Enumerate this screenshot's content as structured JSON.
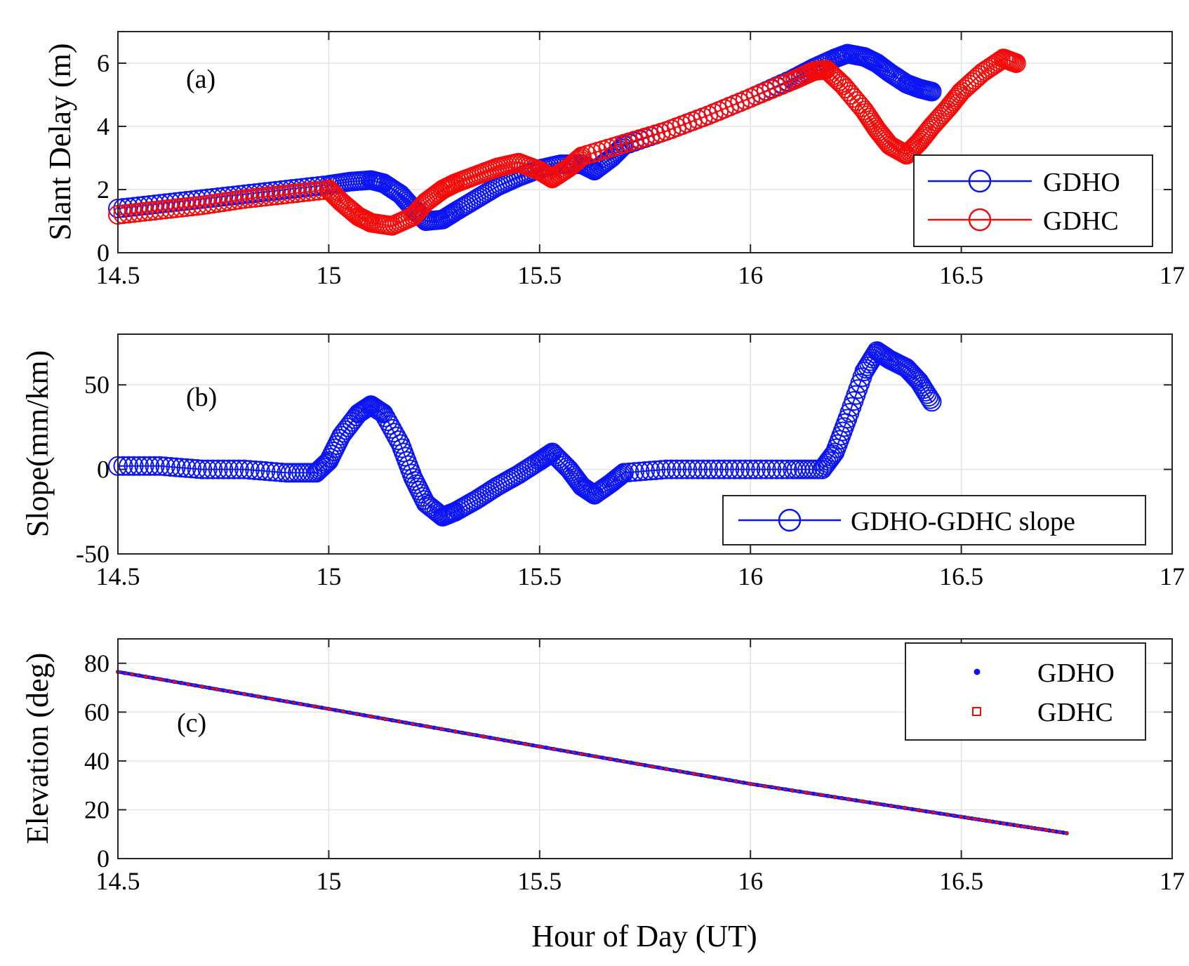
{
  "colors": {
    "GDHO": "#0a14f5",
    "GDHC": "#f50a0a",
    "grid": "#e3e3e3",
    "axis": "#262626"
  },
  "chart_data": [
    {
      "type": "scatter",
      "panel_label": "(a)",
      "ylabel": "Slant Delay (m)",
      "xlabel": "",
      "xlim": [
        14.5,
        17
      ],
      "ylim": [
        0,
        7
      ],
      "xticks": [
        14.5,
        15,
        15.5,
        16,
        16.5,
        17
      ],
      "xtick_labels": [
        "14.5",
        "15",
        "15.5",
        "16",
        "16.5",
        "17"
      ],
      "yticks": [
        0,
        2,
        4,
        6
      ],
      "ytick_labels": [
        "0",
        "2",
        "4",
        "6"
      ],
      "legend_position": "bottom-right",
      "marker": "circle-line",
      "series": [
        {
          "name": "GDHO",
          "color_key": "GDHO",
          "x": [
            14.5,
            14.6,
            14.7,
            14.8,
            14.9,
            15.0,
            15.05,
            15.1,
            15.13,
            15.17,
            15.2,
            15.23,
            15.27,
            15.3,
            15.35,
            15.4,
            15.45,
            15.5,
            15.55,
            15.6,
            15.63,
            15.67,
            15.7,
            15.8,
            15.9,
            16.0,
            16.1,
            16.15,
            16.2,
            16.23,
            16.27,
            16.3,
            16.33,
            16.37,
            16.4,
            16.43
          ],
          "values": [
            1.4,
            1.55,
            1.7,
            1.85,
            2.0,
            2.15,
            2.25,
            2.3,
            2.2,
            1.85,
            1.4,
            1.0,
            1.05,
            1.3,
            1.7,
            2.1,
            2.4,
            2.65,
            2.8,
            2.8,
            2.6,
            3.0,
            3.4,
            3.85,
            4.35,
            4.9,
            5.5,
            5.85,
            6.15,
            6.3,
            6.2,
            6.0,
            5.7,
            5.35,
            5.2,
            5.1
          ]
        },
        {
          "name": "GDHC",
          "color_key": "GDHC",
          "x": [
            14.5,
            14.6,
            14.7,
            14.8,
            14.9,
            15.0,
            15.03,
            15.07,
            15.1,
            15.15,
            15.2,
            15.23,
            15.27,
            15.3,
            15.35,
            15.4,
            15.45,
            15.5,
            15.53,
            15.57,
            15.6,
            15.7,
            15.8,
            15.9,
            16.0,
            16.1,
            16.15,
            16.18,
            16.22,
            16.27,
            16.3,
            16.33,
            16.37,
            16.4,
            16.43,
            16.47,
            16.5,
            16.55,
            16.6,
            16.63
          ],
          "values": [
            1.2,
            1.35,
            1.5,
            1.7,
            1.85,
            2.0,
            1.6,
            1.15,
            0.95,
            0.85,
            1.15,
            1.6,
            2.0,
            2.2,
            2.45,
            2.7,
            2.85,
            2.6,
            2.35,
            2.7,
            3.05,
            3.45,
            3.85,
            4.35,
            4.9,
            5.45,
            5.75,
            5.8,
            5.3,
            4.5,
            3.9,
            3.4,
            3.1,
            3.5,
            4.0,
            4.6,
            5.1,
            5.7,
            6.15,
            6.0
          ]
        }
      ]
    },
    {
      "type": "scatter",
      "panel_label": "(b)",
      "ylabel": "Slope(mm/km)",
      "xlabel": "",
      "xlim": [
        14.5,
        17
      ],
      "ylim": [
        -50,
        80
      ],
      "xticks": [
        14.5,
        15,
        15.5,
        16,
        16.5,
        17
      ],
      "xtick_labels": [
        "14.5",
        "15",
        "15.5",
        "16",
        "16.5",
        "17"
      ],
      "yticks": [
        -50,
        0,
        50
      ],
      "ytick_labels": [
        "-50",
        "0",
        "50"
      ],
      "legend_position": "bottom-right",
      "marker": "circle-line",
      "series": [
        {
          "name": "GDHO-GDHC slope",
          "color_key": "GDHO",
          "x": [
            14.5,
            14.6,
            14.7,
            14.8,
            14.9,
            14.97,
            15.0,
            15.03,
            15.07,
            15.1,
            15.13,
            15.17,
            15.2,
            15.23,
            15.27,
            15.3,
            15.35,
            15.4,
            15.45,
            15.5,
            15.53,
            15.57,
            15.6,
            15.63,
            15.67,
            15.7,
            15.8,
            15.9,
            16.0,
            16.1,
            16.17,
            16.2,
            16.23,
            16.27,
            16.3,
            16.33,
            16.37,
            16.4,
            16.43
          ],
          "values": [
            2,
            2,
            0,
            0,
            -2,
            -2,
            5,
            20,
            33,
            38,
            33,
            15,
            -5,
            -20,
            -28,
            -25,
            -18,
            -10,
            -3,
            5,
            10,
            0,
            -10,
            -15,
            -8,
            -2,
            0,
            0,
            0,
            0,
            0,
            10,
            30,
            58,
            70,
            65,
            60,
            52,
            40
          ]
        }
      ]
    },
    {
      "type": "scatter",
      "panel_label": "(c)",
      "ylabel": "Elevation (deg)",
      "xlabel": "Hour of Day (UT)",
      "xlim": [
        14.5,
        17
      ],
      "ylim": [
        0,
        90
      ],
      "xticks": [
        14.5,
        15,
        15.5,
        16,
        16.5,
        17
      ],
      "xtick_labels": [
        "14.5",
        "15",
        "15.5",
        "16",
        "16.5",
        "17"
      ],
      "yticks": [
        0,
        20,
        40,
        60,
        80
      ],
      "ytick_labels": [
        "0",
        "20",
        "40",
        "60",
        "80"
      ],
      "legend_position": "top-right",
      "marker": "dot-square",
      "series": [
        {
          "name": "GDHO",
          "color_key": "GDHO",
          "x": [
            14.5,
            15.0,
            15.5,
            16.0,
            16.5,
            16.75
          ],
          "values": [
            76.5,
            61.3,
            45.9,
            30.6,
            17.1,
            10.4
          ]
        },
        {
          "name": "GDHC",
          "color_key": "GDHC",
          "x": [
            14.5,
            15.0,
            15.5,
            16.0,
            16.5,
            16.75
          ],
          "values": [
            76.5,
            61.3,
            45.9,
            30.6,
            17.1,
            10.4
          ]
        }
      ]
    }
  ]
}
